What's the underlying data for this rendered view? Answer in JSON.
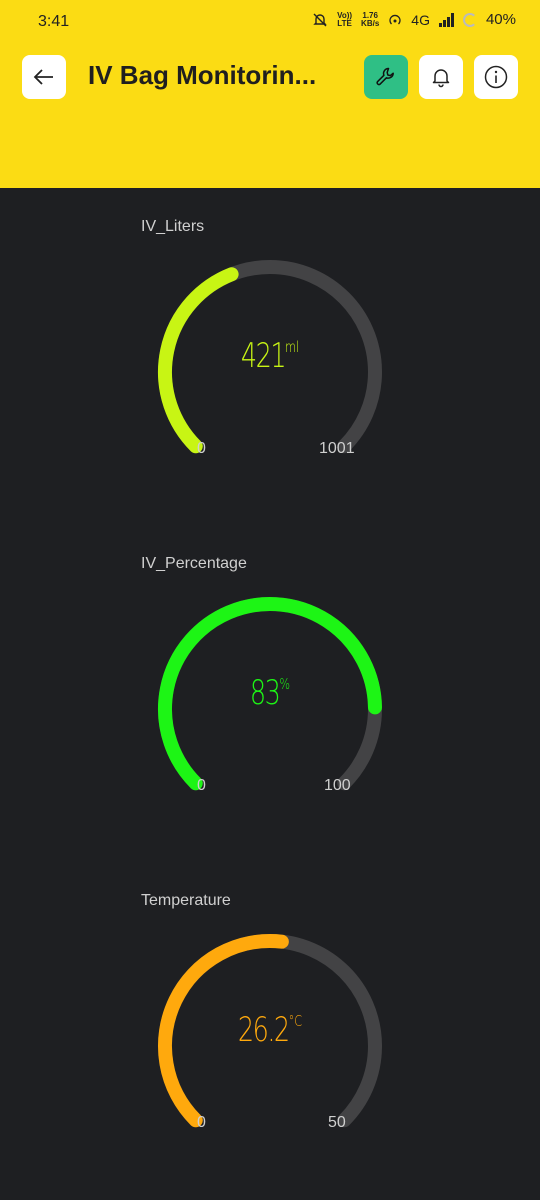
{
  "status": {
    "time": "3:41",
    "net_top": "Vo))",
    "net_bottom": "LTE",
    "speed_top": "1.76",
    "speed_bottom": "KB/s",
    "network": "4G",
    "battery": "40%"
  },
  "header": {
    "title": "IV Bag Monitorin...",
    "background": "#fbdc14",
    "wrench_color": "#2fbf85"
  },
  "widgets": [
    {
      "label": "IV_Liters",
      "value": "421",
      "unit": "ml",
      "min": "0",
      "max": "1001",
      "fraction": 0.4206,
      "color": "#c8f514"
    },
    {
      "label": "IV_Percentage",
      "value": "83",
      "unit": "%",
      "min": "0",
      "max": "100",
      "fraction": 0.83,
      "color": "#1df515"
    },
    {
      "label": "Temperature",
      "value": "26.2",
      "unit": "°C",
      "min": "0",
      "max": "50",
      "fraction": 0.524,
      "color": "#ffa90d"
    }
  ]
}
